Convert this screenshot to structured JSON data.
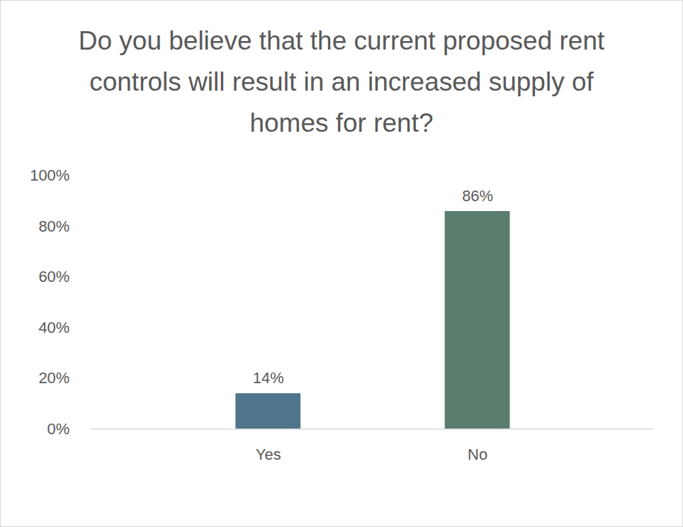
{
  "chart_data": {
    "type": "bar",
    "title": "Do you believe that the current proposed rent controls will result in an increased supply of homes for rent?",
    "categories": [
      "Yes",
      "No"
    ],
    "values": [
      14,
      86
    ],
    "value_labels": [
      "14%",
      "86%"
    ],
    "colors": [
      "#4f758d",
      "#5b7d6d"
    ],
    "ylim": [
      0,
      100
    ],
    "yticks": [
      {
        "value": 0,
        "label": "0%"
      },
      {
        "value": 20,
        "label": "20%"
      },
      {
        "value": 40,
        "label": "40%"
      },
      {
        "value": 60,
        "label": "60%"
      },
      {
        "value": 80,
        "label": "80%"
      },
      {
        "value": 100,
        "label": "100%"
      }
    ],
    "grid": false,
    "data_labels": true
  }
}
